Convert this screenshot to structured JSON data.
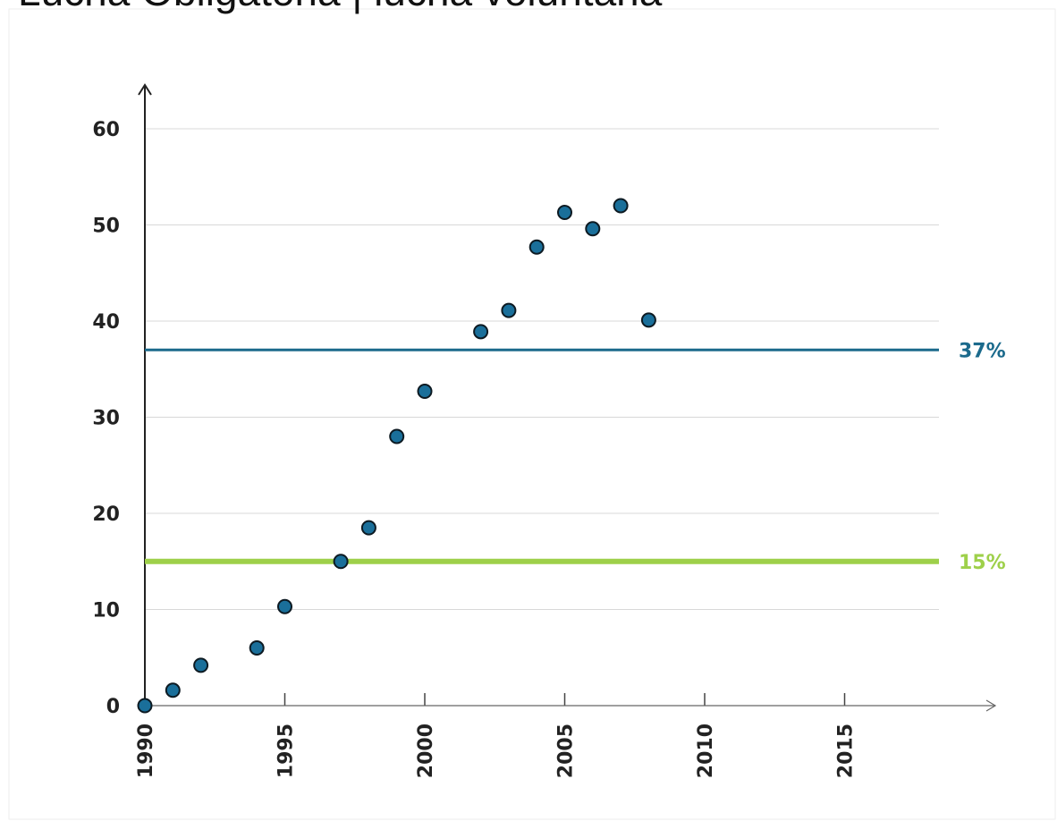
{
  "chart_data": {
    "type": "scatter",
    "title": "Lucha Obligatoria | lucha voluntaria",
    "x": [
      1990,
      1991,
      1992,
      1994,
      1995,
      1997,
      1998,
      1999,
      2000,
      2002,
      2003,
      2004,
      2005,
      2006,
      2007,
      2008
    ],
    "values": [
      0,
      1.6,
      4.2,
      6.0,
      10.3,
      15.0,
      18.5,
      28.0,
      32.7,
      38.9,
      41.1,
      47.7,
      51.3,
      49.6,
      52.0,
      40.1
    ],
    "color": "#1a6f9a",
    "xlim": [
      1990,
      2020
    ],
    "xticks": [
      1990,
      1995,
      2000,
      2005,
      2010,
      2015
    ],
    "ylim": [
      0,
      60
    ],
    "yticks": [
      0,
      10,
      20,
      30,
      40,
      50,
      60
    ],
    "grid": true,
    "reference_lines": [
      {
        "value": 37,
        "label": "37%",
        "color": "#1b6a8c"
      },
      {
        "value": 15,
        "label": "15%",
        "color": "#9ed04a"
      }
    ]
  }
}
